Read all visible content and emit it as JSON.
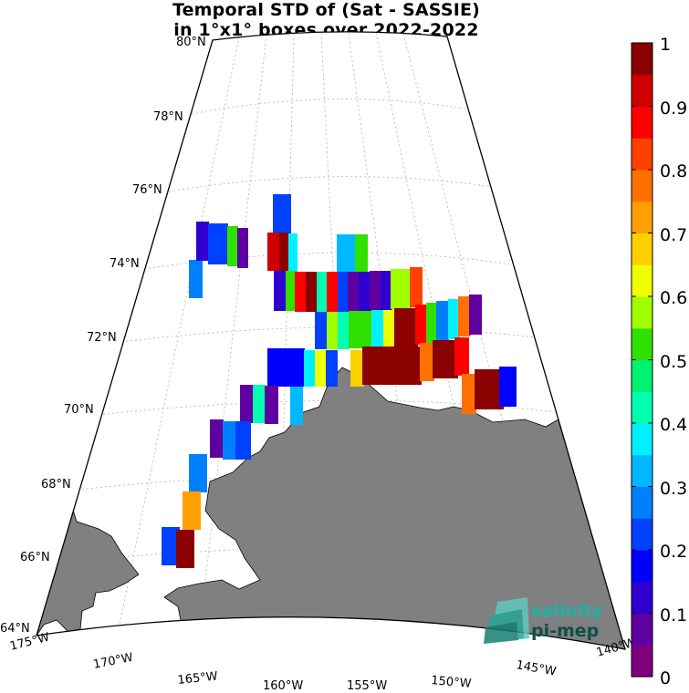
{
  "title": {
    "line1": "Temporal STD of (Sat - SASSIE)",
    "line2": "in 1°x1° boxes over 2022-2022"
  },
  "map": {
    "lat_labels": [
      "80°N",
      "78°N",
      "76°N",
      "74°N",
      "72°N",
      "70°N",
      "68°N",
      "66°N",
      "64°N"
    ],
    "lon_labels": [
      "175°W",
      "170°W",
      "165°W",
      "160°W",
      "155°W",
      "150°W",
      "145°W",
      "140°W"
    ],
    "land_color": "#808080",
    "grid": "dotted"
  },
  "colorbar": {
    "min": 0,
    "max": 1,
    "tick_labels": [
      "0",
      "0.1",
      "0.2",
      "0.3",
      "0.4",
      "0.5",
      "0.6",
      "0.7",
      "0.8",
      "0.9",
      "1"
    ],
    "colors": [
      "#7f007f",
      "#5f00a0",
      "#3000d0",
      "#0000ff",
      "#0040ff",
      "#0080ff",
      "#00b8ff",
      "#00f0ff",
      "#00ffb0",
      "#00f070",
      "#30e000",
      "#a0ff00",
      "#f0ff00",
      "#ffd000",
      "#ffa000",
      "#ff7000",
      "#ff4000",
      "#ff0000",
      "#d00000",
      "#8b0000"
    ]
  },
  "logo": {
    "line1": "salinity",
    "line2": "pi-mep"
  }
}
